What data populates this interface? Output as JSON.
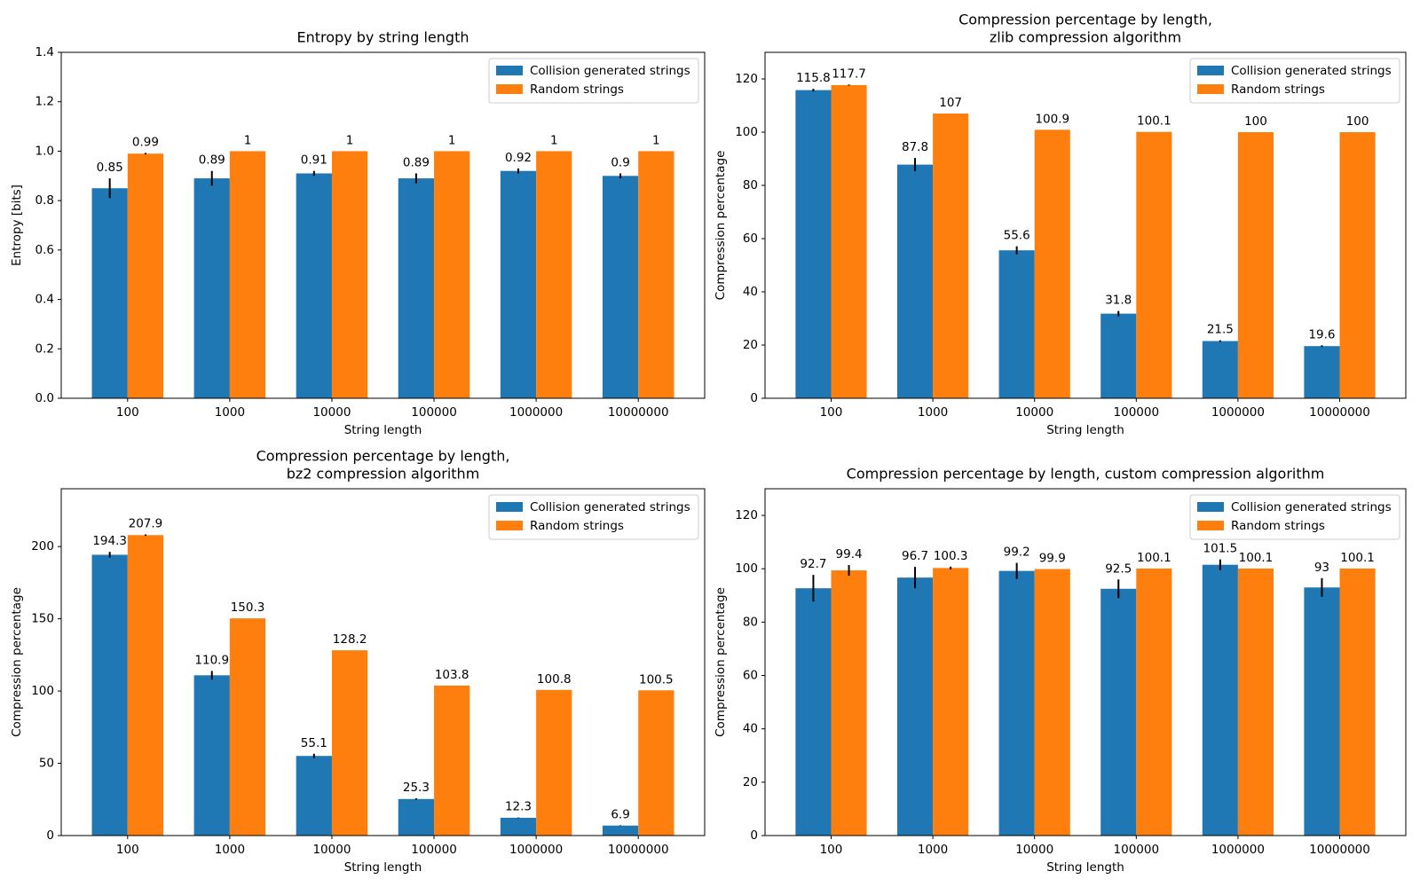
{
  "chart_data": [
    {
      "type": "bar",
      "title": [
        "Entropy by string length"
      ],
      "xlabel": "String length",
      "ylabel": "Entropy [bits]",
      "categories": [
        "100",
        "1000",
        "10000",
        "100000",
        "1000000",
        "10000000"
      ],
      "series": [
        {
          "name": "Collision generated strings",
          "color": "#1f77b4",
          "values": [
            0.85,
            0.89,
            0.91,
            0.89,
            0.92,
            0.9
          ],
          "errors": [
            0.04,
            0.03,
            0.01,
            0.02,
            0.01,
            0.01
          ]
        },
        {
          "name": "Random strings",
          "color": "#ff7f0e",
          "values": [
            0.99,
            1,
            1,
            1,
            1,
            1
          ],
          "errors": [
            0.003,
            0,
            0,
            0,
            0,
            0
          ]
        }
      ],
      "ylim": [
        0,
        1.4
      ],
      "yticks": [
        {
          "value": 0,
          "label": "0.0"
        },
        0.2,
        0.4,
        0.6,
        0.8,
        {
          "value": 1,
          "label": "1.0"
        },
        1.2,
        1.4
      ],
      "legend": "upper right"
    },
    {
      "type": "bar",
      "title": [
        "Compression percentage by length,",
        "zlib compression algorithm"
      ],
      "xlabel": "String length",
      "ylabel": "Compression percentage",
      "categories": [
        "100",
        "1000",
        "10000",
        "100000",
        "1000000",
        "10000000"
      ],
      "series": [
        {
          "name": "Collision generated strings",
          "color": "#1f77b4",
          "values": [
            115.8,
            87.8,
            55.6,
            31.8,
            21.5,
            19.6
          ],
          "errors": [
            0.5,
            2.5,
            1.5,
            1,
            0.3,
            0.3
          ]
        },
        {
          "name": "Random strings",
          "color": "#ff7f0e",
          "values": [
            117.7,
            107,
            100.9,
            100.1,
            100,
            100
          ],
          "errors": [
            0.2,
            0,
            0,
            0,
            0,
            0
          ]
        }
      ],
      "ylim": [
        0,
        130
      ],
      "yticks": [
        0,
        20,
        40,
        60,
        80,
        100,
        120
      ],
      "legend": "upper right"
    },
    {
      "type": "bar",
      "title": [
        "Compression percentage by length,",
        "bz2 compression algorithm"
      ],
      "xlabel": "String length",
      "ylabel": "Compression percentage",
      "categories": [
        "100",
        "1000",
        "10000",
        "100000",
        "1000000",
        "10000000"
      ],
      "series": [
        {
          "name": "Collision generated strings",
          "color": "#1f77b4",
          "values": [
            194.3,
            110.9,
            55.1,
            25.3,
            12.3,
            6.9
          ],
          "errors": [
            2,
            3,
            1.5,
            0.5,
            0.2,
            0.2
          ]
        },
        {
          "name": "Random strings",
          "color": "#ff7f0e",
          "values": [
            207.9,
            150.3,
            128.2,
            103.8,
            100.8,
            100.5
          ],
          "errors": [
            0.5,
            0,
            0,
            0,
            0,
            0
          ]
        }
      ],
      "ylim": [
        0,
        240
      ],
      "yticks": [
        0,
        50,
        100,
        150,
        200
      ],
      "legend": "upper right"
    },
    {
      "type": "bar",
      "title": [
        "Compression percentage by length, custom compression algorithm"
      ],
      "xlabel": "String length",
      "ylabel": "Compression percentage",
      "categories": [
        "100",
        "1000",
        "10000",
        "100000",
        "1000000",
        "10000000"
      ],
      "series": [
        {
          "name": "Collision generated strings",
          "color": "#1f77b4",
          "values": [
            92.7,
            96.7,
            99.2,
            92.5,
            101.5,
            93
          ],
          "errors": [
            5,
            4,
            3,
            3.5,
            2,
            3.5
          ]
        },
        {
          "name": "Random strings",
          "color": "#ff7f0e",
          "values": [
            99.4,
            100.3,
            99.9,
            100.1,
            100.1,
            100.1
          ],
          "errors": [
            2,
            0.5,
            0,
            0,
            0,
            0
          ]
        }
      ],
      "ylim": [
        0,
        130
      ],
      "yticks": [
        0,
        20,
        40,
        60,
        80,
        100,
        120
      ],
      "legend": "upper right"
    }
  ]
}
